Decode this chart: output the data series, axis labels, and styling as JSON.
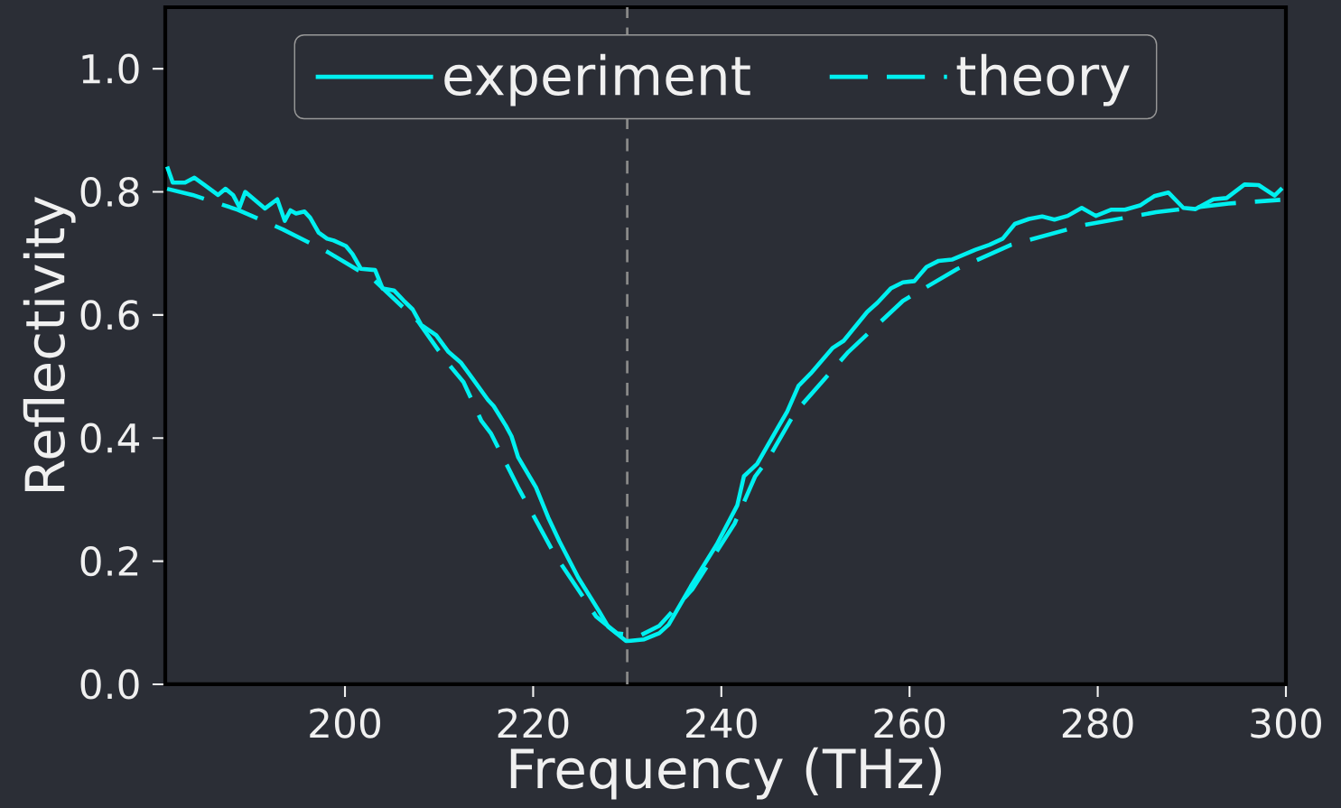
{
  "chart_data": {
    "type": "line",
    "xlabel": "Frequency (THz)",
    "ylabel": "Reflectivity",
    "xlim": [
      180.9,
      300
    ],
    "ylim": [
      0,
      1.1
    ],
    "xticks": [
      200,
      220,
      240,
      260,
      280,
      300
    ],
    "yticks": [
      {
        "value": 0,
        "label": "0.0"
      },
      0.2,
      0.4,
      0.6,
      0.8,
      {
        "value": 1.0,
        "label": "1.0"
      }
    ],
    "legend": "top",
    "ref_lines": [
      {
        "axis": "x",
        "value": 230,
        "color": "#888888",
        "line_style": "dashed"
      }
    ],
    "series": [
      {
        "name": "experiment",
        "color": "#00f0f0",
        "line_style": "solid",
        "x": [
          181.1,
          181.7,
          183.0,
          184.0,
          185.0,
          186.5,
          187.3,
          188.1,
          188.8,
          189.4,
          191.5,
          192.8,
          193.6,
          194.2,
          194.8,
          195.7,
          196.3,
          197.2,
          198.1,
          198.8,
          200.1,
          200.8,
          201.7,
          203.2,
          204.0,
          205.2,
          206.2,
          207.2,
          208.1,
          209.7,
          211.0,
          212.3,
          213.6,
          215.2,
          215.8,
          217.1,
          217.7,
          218.4,
          220.3,
          221.6,
          222.8,
          224.8,
          227.0,
          228.0,
          229.9,
          231.8,
          233.4,
          234.4,
          236.9,
          239.5,
          241.7,
          242.4,
          243.8,
          245.9,
          247.0,
          248.2,
          249.5,
          251.8,
          253.0,
          255.5,
          256.6,
          258.0,
          259.3,
          260.5,
          261.8,
          263.1,
          264.5,
          267.0,
          268.5,
          269.9,
          271.2,
          272.7,
          274.1,
          275.4,
          276.8,
          278.3,
          279.8,
          281.4,
          282.9,
          284.5,
          286.0,
          287.5,
          289.1,
          290.4,
          292.3,
          293.7,
          295.6,
          297.1,
          298.8,
          299.6
        ],
        "values": [
          0.841,
          0.815,
          0.815,
          0.823,
          0.812,
          0.795,
          0.805,
          0.795,
          0.775,
          0.8,
          0.773,
          0.788,
          0.753,
          0.77,
          0.765,
          0.768,
          0.758,
          0.734,
          0.724,
          0.721,
          0.712,
          0.699,
          0.675,
          0.673,
          0.643,
          0.64,
          0.624,
          0.609,
          0.584,
          0.567,
          0.54,
          0.523,
          0.496,
          0.462,
          0.452,
          0.42,
          0.403,
          0.369,
          0.32,
          0.271,
          0.232,
          0.173,
          0.119,
          0.093,
          0.07,
          0.073,
          0.083,
          0.097,
          0.163,
          0.227,
          0.291,
          0.338,
          0.358,
          0.414,
          0.443,
          0.485,
          0.505,
          0.546,
          0.558,
          0.605,
          0.62,
          0.643,
          0.653,
          0.655,
          0.678,
          0.688,
          0.69,
          0.706,
          0.714,
          0.724,
          0.748,
          0.756,
          0.76,
          0.755,
          0.761,
          0.774,
          0.761,
          0.771,
          0.771,
          0.778,
          0.793,
          0.799,
          0.774,
          0.772,
          0.788,
          0.79,
          0.812,
          0.811,
          0.794,
          0.806
        ]
      },
      {
        "name": "theory",
        "color": "#00f0f0",
        "line_style": "dashed",
        "x": [
          181.1,
          183.8,
          188.6,
          193.4,
          198.2,
          203.0,
          207.8,
          210.7,
          212.6,
          214.5,
          215.5,
          218.4,
          222.2,
          226.7,
          228.9,
          231.2,
          233.4,
          236.9,
          241.4,
          243.6,
          244.9,
          247.8,
          253.5,
          259.3,
          265.1,
          270.8,
          278.5,
          286.2,
          293.9,
          299.4
        ],
        "values": [
          0.805,
          0.795,
          0.771,
          0.739,
          0.702,
          0.658,
          0.589,
          0.526,
          0.491,
          0.428,
          0.408,
          0.32,
          0.213,
          0.11,
          0.083,
          0.078,
          0.095,
          0.154,
          0.261,
          0.338,
          0.364,
          0.441,
          0.54,
          0.623,
          0.675,
          0.714,
          0.746,
          0.767,
          0.781,
          0.787
        ]
      }
    ]
  }
}
